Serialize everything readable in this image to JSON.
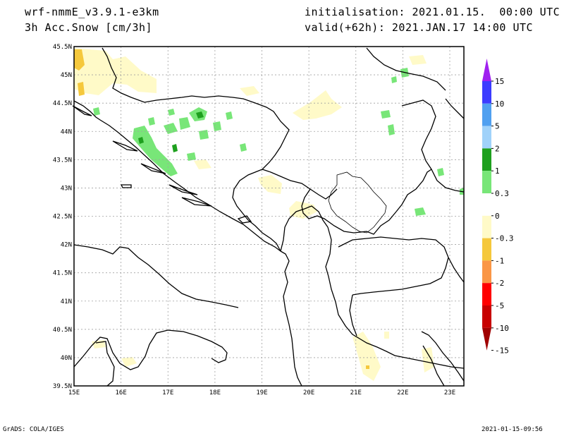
{
  "header": {
    "model": "wrf-nmmE_v3.9.1-e3km",
    "variable": "3h Acc.Snow [cm/3h]",
    "initialisation": "initialisation: 2021.01.15.  00:00 UTC",
    "valid": "valid(+62h): 2021.JAN.17 14:00 UTC"
  },
  "footer": {
    "left": "GrADS: COLA/IGES",
    "right": "2021-01-15-09:56"
  },
  "map": {
    "lon_range": [
      15,
      23.3
    ],
    "lat_range": [
      39.5,
      45.5
    ],
    "lon_labels": [
      "15E",
      "16E",
      "17E",
      "18E",
      "19E",
      "20E",
      "21E",
      "22E",
      "23E"
    ],
    "lat_labels": [
      "45.5N",
      "45N",
      "44.5N",
      "44N",
      "43.5N",
      "43N",
      "42.5N",
      "42N",
      "41.5N",
      "41N",
      "40.5N",
      "40N",
      "39.5N"
    ],
    "grid": true
  },
  "colorbar": {
    "labels": [
      "15",
      "10",
      "5",
      "2",
      "1",
      "0.3",
      "0",
      "-0.3",
      "-1",
      "-2",
      "-5",
      "-10",
      "-15"
    ],
    "colors": [
      "#a020f0",
      "#3c3cff",
      "#50a0f0",
      "#a0d2fa",
      "#1ea01e",
      "#78e678",
      "#ffffff",
      "#fffac8",
      "#f5c83c",
      "#fa9646",
      "#ff0000",
      "#c80000",
      "#a00000"
    ]
  }
}
